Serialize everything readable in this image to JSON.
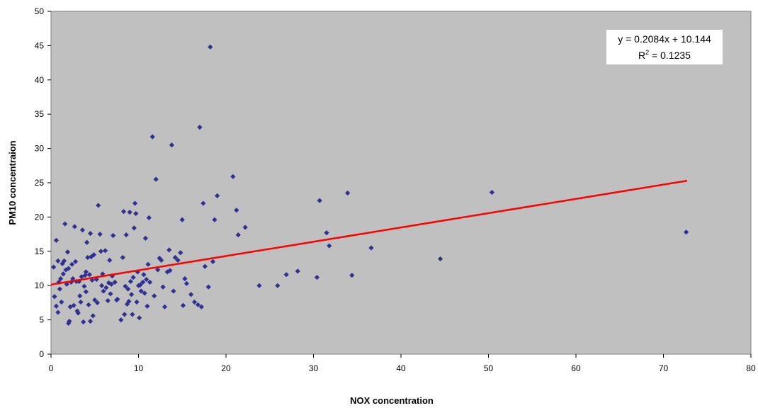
{
  "chart_data": {
    "type": "scatter",
    "xlabel": "NOX concentration",
    "ylabel": "PM10 concentraion",
    "xlim": [
      0,
      80
    ],
    "ylim": [
      0,
      50
    ],
    "xticks": [
      "0",
      "10",
      "20",
      "30",
      "40",
      "50",
      "60",
      "70",
      "80"
    ],
    "yticks": [
      "0",
      "5",
      "10",
      "15",
      "20",
      "25",
      "30",
      "35",
      "40",
      "45",
      "50"
    ],
    "grid": false,
    "plot_background": "#c0c0c0",
    "marker_color": "#2e3192",
    "trendline_color": "#ff0000",
    "trendline": {
      "slope": 0.2084,
      "intercept": 10.144,
      "x_range": [
        0,
        72.7
      ],
      "equation": "y = 0.2084x + 10.144",
      "r2_label": "R",
      "r2_sup": "2",
      "r2_value": " = 0.1235"
    },
    "points": [
      [
        0.3,
        12.7
      ],
      [
        0.4,
        8.4
      ],
      [
        0.6,
        16.6
      ],
      [
        0.6,
        7.0
      ],
      [
        0.8,
        6.1
      ],
      [
        0.8,
        13.6
      ],
      [
        0.9,
        10.5
      ],
      [
        1.0,
        9.5
      ],
      [
        1.1,
        11.0
      ],
      [
        1.2,
        7.6
      ],
      [
        1.3,
        13.2
      ],
      [
        1.4,
        11.7
      ],
      [
        1.5,
        13.6
      ],
      [
        1.6,
        19.0
      ],
      [
        1.7,
        12.3
      ],
      [
        1.8,
        10.2
      ],
      [
        1.9,
        14.9
      ],
      [
        2.0,
        12.5
      ],
      [
        2.0,
        4.5
      ],
      [
        2.1,
        4.8
      ],
      [
        2.2,
        6.9
      ],
      [
        2.3,
        10.5
      ],
      [
        2.4,
        13.1
      ],
      [
        2.5,
        11.0
      ],
      [
        2.6,
        7.1
      ],
      [
        2.7,
        18.6
      ],
      [
        2.8,
        13.5
      ],
      [
        2.9,
        10.6
      ],
      [
        3.0,
        6.3
      ],
      [
        3.1,
        6.0
      ],
      [
        3.2,
        10.6
      ],
      [
        3.3,
        8.5
      ],
      [
        3.4,
        7.6
      ],
      [
        3.5,
        11.3
      ],
      [
        3.6,
        18.1
      ],
      [
        3.7,
        4.7
      ],
      [
        3.8,
        9.9
      ],
      [
        3.9,
        11.5
      ],
      [
        4.0,
        12.0
      ],
      [
        4.0,
        9.1
      ],
      [
        4.1,
        16.3
      ],
      [
        4.2,
        14.1
      ],
      [
        4.3,
        7.2
      ],
      [
        4.4,
        11.6
      ],
      [
        4.5,
        17.6
      ],
      [
        4.5,
        4.8
      ],
      [
        4.6,
        14.2
      ],
      [
        4.7,
        10.8
      ],
      [
        4.8,
        5.6
      ],
      [
        4.9,
        14.5
      ],
      [
        5.0,
        7.9
      ],
      [
        5.2,
        10.9
      ],
      [
        5.3,
        7.5
      ],
      [
        5.4,
        21.7
      ],
      [
        5.6,
        17.5
      ],
      [
        5.7,
        15.0
      ],
      [
        5.8,
        10.0
      ],
      [
        5.9,
        11.7
      ],
      [
        6.0,
        9.2
      ],
      [
        6.2,
        15.1
      ],
      [
        6.3,
        9.7
      ],
      [
        6.5,
        7.8
      ],
      [
        6.6,
        10.4
      ],
      [
        6.7,
        13.7
      ],
      [
        6.8,
        8.8
      ],
      [
        6.9,
        10.2
      ],
      [
        7.0,
        11.4
      ],
      [
        7.1,
        17.3
      ],
      [
        7.3,
        10.5
      ],
      [
        7.5,
        7.9
      ],
      [
        7.6,
        8.0
      ],
      [
        8.0,
        5.0
      ],
      [
        8.2,
        14.1
      ],
      [
        8.3,
        20.8
      ],
      [
        8.4,
        5.8
      ],
      [
        8.5,
        9.9
      ],
      [
        8.6,
        17.4
      ],
      [
        8.7,
        7.3
      ],
      [
        8.8,
        9.5
      ],
      [
        8.9,
        7.7
      ],
      [
        9.0,
        20.7
      ],
      [
        9.1,
        10.6
      ],
      [
        9.2,
        8.7
      ],
      [
        9.3,
        5.8
      ],
      [
        9.4,
        11.2
      ],
      [
        9.5,
        18.4
      ],
      [
        9.6,
        22.0
      ],
      [
        9.7,
        20.5
      ],
      [
        9.8,
        7.6
      ],
      [
        9.9,
        12.0
      ],
      [
        10.0,
        10.0
      ],
      [
        10.1,
        5.3
      ],
      [
        10.2,
        10.1
      ],
      [
        10.3,
        9.2
      ],
      [
        10.5,
        10.5
      ],
      [
        10.6,
        11.6
      ],
      [
        10.7,
        8.9
      ],
      [
        10.8,
        16.9
      ],
      [
        10.9,
        10.9
      ],
      [
        11.0,
        7.0
      ],
      [
        11.1,
        13.1
      ],
      [
        11.2,
        19.9
      ],
      [
        11.3,
        10.5
      ],
      [
        11.6,
        31.7
      ],
      [
        11.8,
        8.5
      ],
      [
        12.0,
        25.5
      ],
      [
        12.2,
        12.3
      ],
      [
        12.4,
        14.0
      ],
      [
        12.6,
        13.7
      ],
      [
        12.8,
        9.8
      ],
      [
        13.0,
        6.9
      ],
      [
        13.3,
        12.0
      ],
      [
        13.5,
        15.2
      ],
      [
        13.6,
        12.2
      ],
      [
        13.8,
        30.5
      ],
      [
        14.0,
        9.2
      ],
      [
        14.2,
        14.1
      ],
      [
        14.5,
        13.7
      ],
      [
        14.8,
        14.8
      ],
      [
        15.0,
        19.6
      ],
      [
        15.1,
        7.1
      ],
      [
        15.3,
        11.0
      ],
      [
        15.5,
        10.3
      ],
      [
        16.0,
        8.7
      ],
      [
        16.4,
        7.6
      ],
      [
        16.8,
        7.2
      ],
      [
        17.0,
        33.1
      ],
      [
        17.2,
        6.9
      ],
      [
        17.4,
        22.0
      ],
      [
        17.6,
        12.8
      ],
      [
        18.0,
        9.8
      ],
      [
        18.2,
        44.8
      ],
      [
        18.5,
        13.5
      ],
      [
        18.7,
        19.6
      ],
      [
        19.0,
        23.1
      ],
      [
        20.8,
        25.9
      ],
      [
        21.2,
        21.0
      ],
      [
        21.4,
        17.4
      ],
      [
        22.2,
        18.5
      ],
      [
        23.8,
        10.0
      ],
      [
        25.9,
        10.0
      ],
      [
        26.9,
        11.6
      ],
      [
        28.2,
        12.1
      ],
      [
        30.4,
        11.2
      ],
      [
        30.7,
        22.4
      ],
      [
        31.5,
        17.7
      ],
      [
        31.8,
        15.8
      ],
      [
        33.9,
        23.5
      ],
      [
        34.4,
        11.5
      ],
      [
        36.6,
        15.5
      ],
      [
        44.5,
        13.9
      ],
      [
        50.4,
        23.6
      ],
      [
        72.6,
        17.8
      ]
    ]
  }
}
